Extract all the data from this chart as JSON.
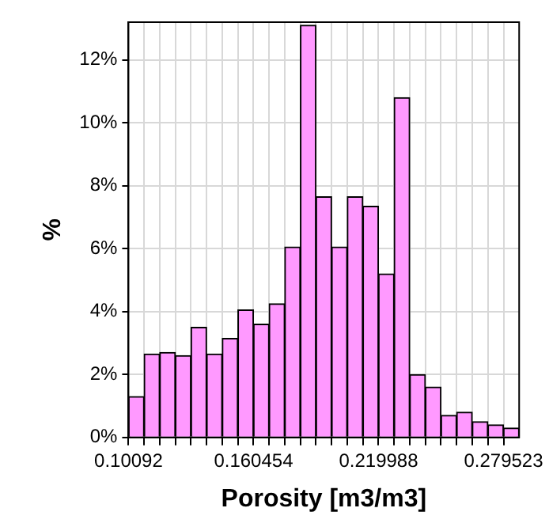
{
  "chart_data": {
    "type": "histogram",
    "xlabel": "Porosity [m3/m3]",
    "ylabel": "%",
    "bins": [
      0.10092,
      0.108362,
      0.115804,
      0.123245,
      0.130687,
      0.138129,
      0.145571,
      0.153012,
      0.160454,
      0.167896,
      0.175338,
      0.182779,
      0.190221,
      0.197663,
      0.205105,
      0.212546,
      0.219988,
      0.22743,
      0.234872,
      0.242313,
      0.249755,
      0.257197,
      0.264639,
      0.27208,
      0.279523,
      0.286965
    ],
    "values": [
      1.3,
      2.65,
      2.7,
      2.6,
      3.5,
      2.65,
      3.15,
      4.05,
      3.6,
      4.25,
      6.05,
      13.1,
      7.65,
      6.05,
      7.65,
      7.35,
      5.2,
      10.8,
      2.0,
      1.6,
      0.7,
      0.8,
      0.5,
      0.4,
      0.3
    ],
    "color": "#ff99ff",
    "xlim": [
      0.10092,
      0.286965
    ],
    "xticks": [
      0.10092,
      {
        "value": 0.108362,
        "label": null
      },
      {
        "value": 0.115804,
        "label": null
      },
      {
        "value": 0.123245,
        "label": null
      },
      {
        "value": 0.130687,
        "label": null
      },
      {
        "value": 0.138129,
        "label": null
      },
      {
        "value": 0.145571,
        "label": null
      },
      {
        "value": 0.153012,
        "label": null
      },
      0.160454,
      {
        "value": 0.167896,
        "label": null
      },
      {
        "value": 0.175338,
        "label": null
      },
      {
        "value": 0.182779,
        "label": null
      },
      {
        "value": 0.190221,
        "label": null
      },
      {
        "value": 0.197663,
        "label": null
      },
      {
        "value": 0.205105,
        "label": null
      },
      {
        "value": 0.212546,
        "label": null
      },
      0.219988,
      {
        "value": 0.22743,
        "label": null
      },
      {
        "value": 0.234872,
        "label": null
      },
      {
        "value": 0.242313,
        "label": null
      },
      {
        "value": 0.249755,
        "label": null
      },
      {
        "value": 0.257197,
        "label": null
      },
      {
        "value": 0.264639,
        "label": null
      },
      {
        "value": 0.27208,
        "label": null
      },
      0.279523
    ],
    "ylim": [
      0,
      13.2
    ],
    "yticks": [
      {
        "value": 0,
        "label": "0%"
      },
      {
        "value": 2,
        "label": "2%"
      },
      {
        "value": 4,
        "label": "4%"
      },
      {
        "value": 6,
        "label": "6%"
      },
      {
        "value": 8,
        "label": "8%"
      },
      {
        "value": 10,
        "label": "10%"
      },
      {
        "value": 12,
        "label": "12%"
      }
    ],
    "grid": true
  }
}
